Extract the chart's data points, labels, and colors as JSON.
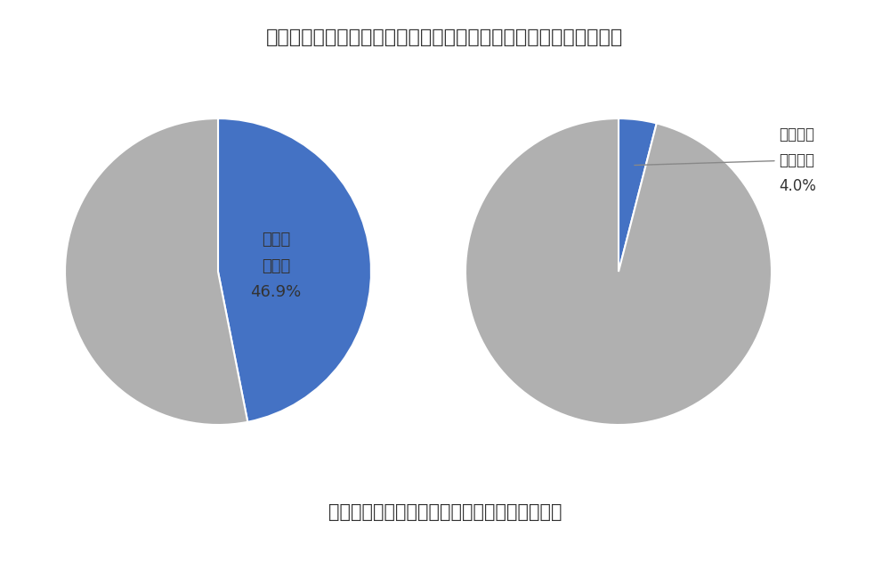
{
  "title": "（図１）家計を支えている方の収入・事業・仕事への自粛等の影響",
  "subtitle": "約半数の学生が、家計の収入減に直面している",
  "left_pie": {
    "values": [
      46.9,
      53.1
    ],
    "colors": [
      "#4472c4",
      "#b0b0b0"
    ],
    "label_inside": "収入が\n減った\n46.9%",
    "startangle": 90
  },
  "right_pie": {
    "values": [
      4.0,
      96.0
    ],
    "colors": [
      "#4472c4",
      "#b0b0b0"
    ],
    "annotation_text": "収入がな\nくなった\n4.0%",
    "startangle": 90
  },
  "background_color": "#ffffff",
  "title_fontsize": 16,
  "subtitle_fontsize": 15,
  "label_fontsize": 13,
  "annotation_fontsize": 12,
  "text_color": "#333333"
}
